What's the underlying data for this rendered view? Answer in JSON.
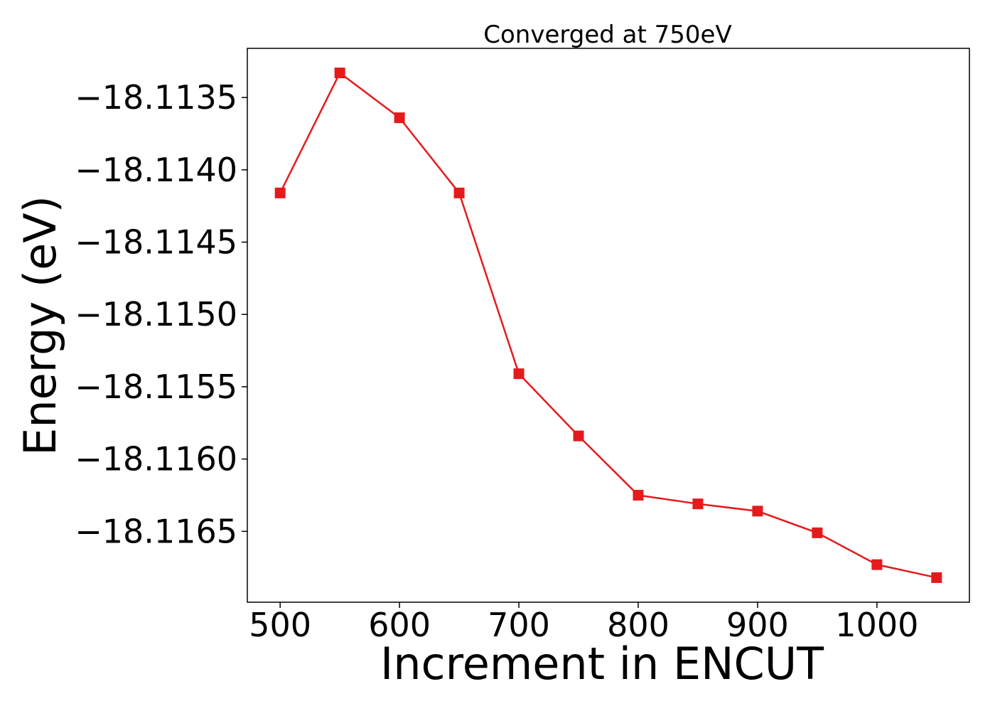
{
  "chart_data": {
    "type": "line",
    "title": "Converged at 750eV",
    "xlabel": "Increment in ENCUT",
    "ylabel": "Energy (eV)",
    "x": [
      500,
      550,
      600,
      650,
      700,
      750,
      800,
      850,
      900,
      950,
      1000,
      1050
    ],
    "series": [
      {
        "values": [
          -18.11416,
          -18.11333,
          -18.11364,
          -18.11416,
          -18.11541,
          -18.11584,
          -18.11625,
          -18.11631,
          -18.11636,
          -18.11651,
          -18.11673,
          -18.11682
        ],
        "color": "#e41a1c",
        "marker": "square"
      }
    ],
    "xticks": [
      500,
      600,
      700,
      800,
      900,
      1000
    ],
    "xtick_labels": [
      "500",
      "600",
      "700",
      "800",
      "900",
      "1000"
    ],
    "yticks": [
      -18.1135,
      -18.114,
      -18.1145,
      -18.115,
      -18.1155,
      -18.116,
      -18.1165
    ],
    "ytick_labels": [
      "−18.1135",
      "−18.1140",
      "−18.1145",
      "−18.1150",
      "−18.1155",
      "−18.1160",
      "−18.1165"
    ],
    "xlim": [
      472.5,
      1077.5
    ],
    "ylim": [
      -18.11699,
      -18.11316
    ],
    "grid": false,
    "legend": "none"
  }
}
